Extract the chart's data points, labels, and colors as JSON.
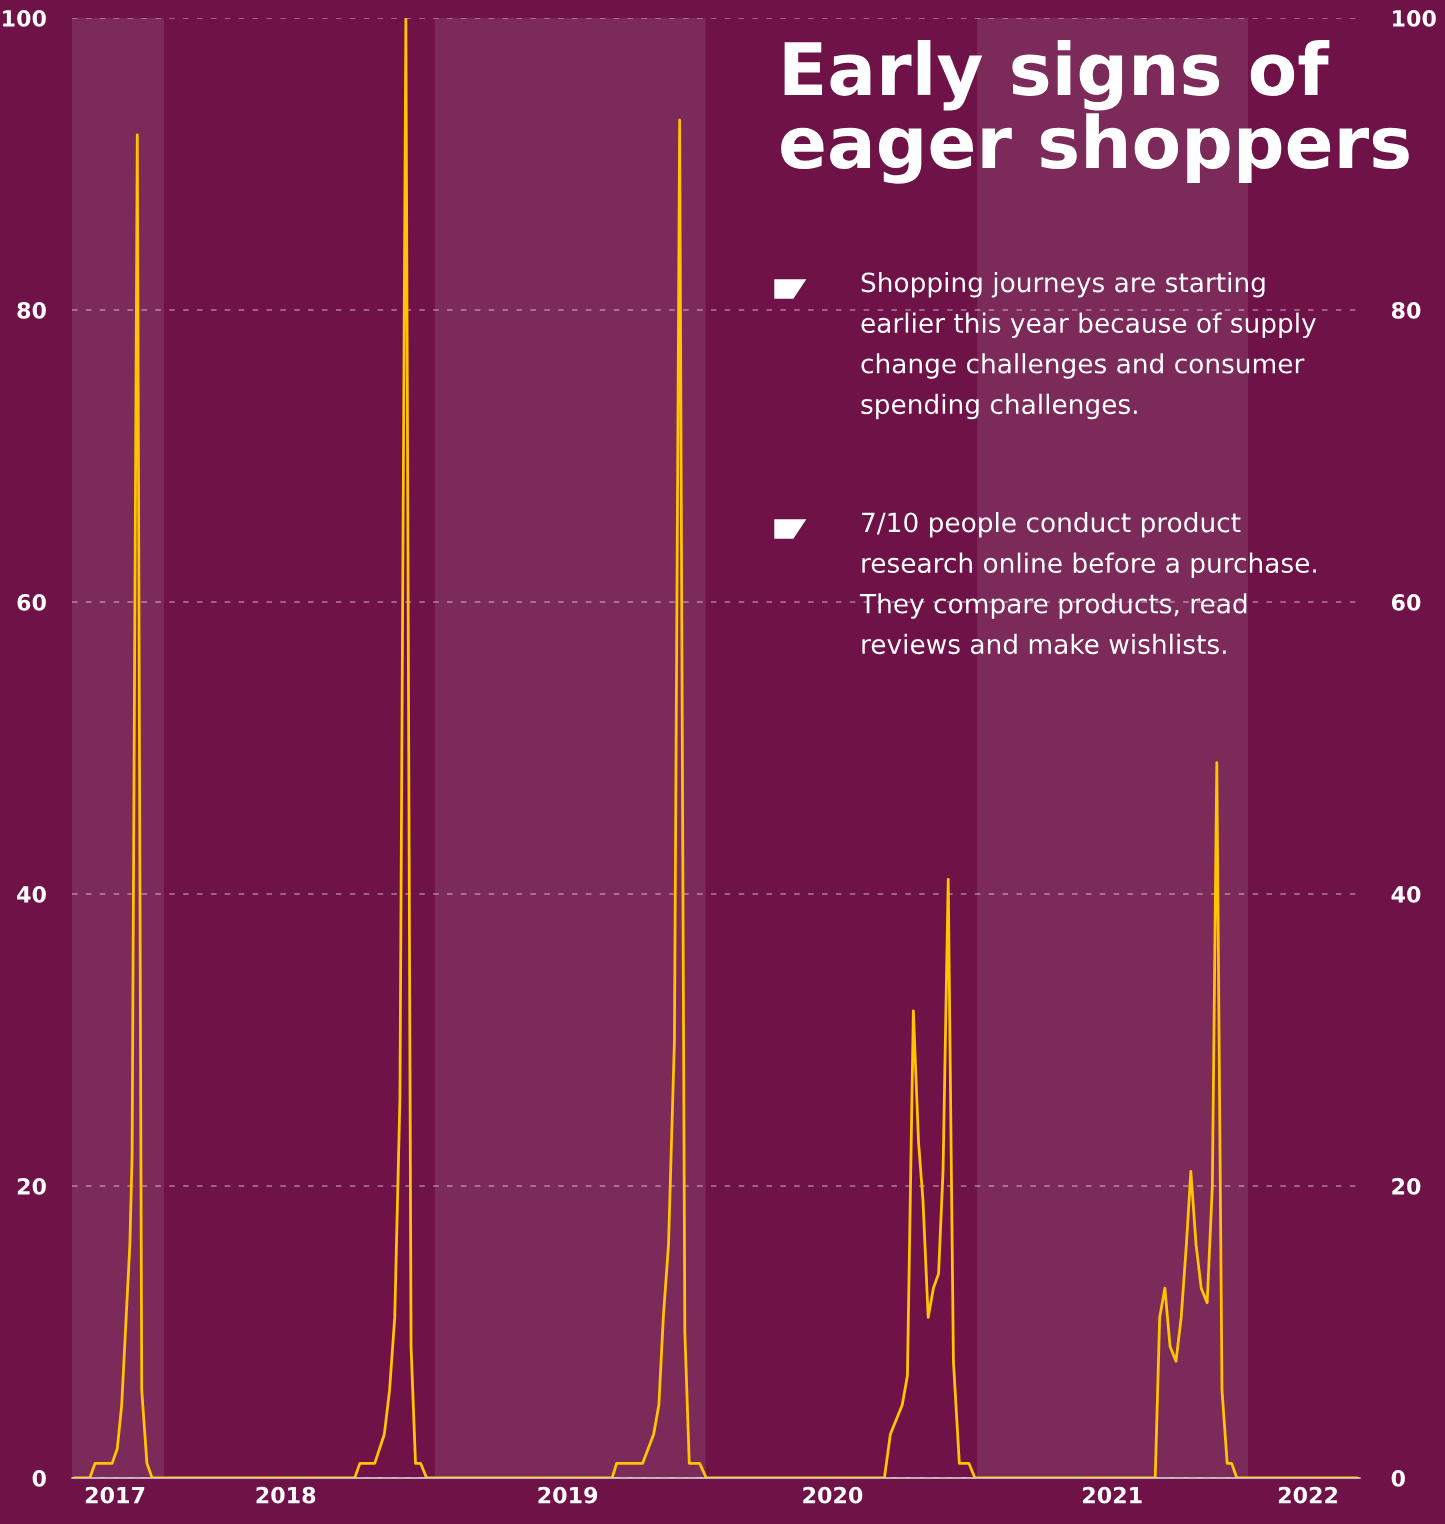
{
  "chart_data": {
    "type": "line",
    "annotations": [
      "Early signs of\neager shoppers",
      "Shopping journeys are starting\nearlier this year because of supply\nchange challenges and consumer\nspending challenges.",
      "7/10 people conduct product\nresearch online before a purchase.\nThey compare products, read\nreviews and make wishlists."
    ],
    "series": [
      {
        "color": "#ffc400",
        "x": [
          "2017-09-03",
          "2017-09-23",
          "2017-09-30",
          "2017-10-23",
          "2017-10-30",
          "2017-11-05",
          "2017-11-11",
          "2017-11-16",
          "2017-11-19",
          "2017-11-26",
          "2017-12-02",
          "2017-12-09",
          "2017-12-16",
          "2018-09-15",
          "2018-09-22",
          "2018-10-12",
          "2018-10-25",
          "2018-11-01",
          "2018-11-08",
          "2018-11-15",
          "2018-11-23",
          "2018-11-30",
          "2018-12-06",
          "2018-12-13",
          "2018-12-21",
          "2019-08-28",
          "2019-09-03",
          "2019-10-08",
          "2019-10-23",
          "2019-10-30",
          "2019-11-05",
          "2019-11-12",
          "2019-11-20",
          "2019-11-27",
          "2019-12-04",
          "2019-12-10",
          "2019-12-24",
          "2020-01-02",
          "2020-08-29",
          "2020-09-06",
          "2020-09-22",
          "2020-09-29",
          "2020-10-07",
          "2020-10-14",
          "2020-10-20",
          "2020-10-27",
          "2020-11-03",
          "2020-11-10",
          "2020-11-16",
          "2020-11-23",
          "2020-11-30",
          "2020-12-08",
          "2020-12-21",
          "2020-12-29",
          "2021-08-29",
          "2021-09-04",
          "2021-09-11",
          "2021-09-18",
          "2021-09-26",
          "2021-10-03",
          "2021-10-10",
          "2021-10-16",
          "2021-10-23",
          "2021-10-30",
          "2021-11-07",
          "2021-11-14",
          "2021-11-20",
          "2021-11-27",
          "2021-12-04",
          "2021-12-10",
          "2021-12-17",
          "2022-05-28"
        ],
        "values": [
          0,
          0,
          1,
          1,
          2,
          5,
          11,
          16,
          22,
          92,
          6,
          1,
          0,
          0,
          1,
          1,
          3,
          6,
          11,
          26,
          100,
          9,
          1,
          1,
          0,
          0,
          1,
          1,
          3,
          5,
          11,
          16,
          30,
          93,
          10,
          1,
          1,
          0,
          0,
          3,
          5,
          7,
          32,
          23,
          19,
          11,
          13,
          14,
          21,
          41,
          8,
          1,
          1,
          0,
          0,
          11,
          13,
          9,
          8,
          11,
          16,
          21,
          16,
          13,
          12,
          20,
          49,
          6,
          1,
          1,
          0,
          0
        ]
      }
    ],
    "xlim": [
      "2017-08-30",
      "2022-06-01"
    ],
    "xticks": [
      {
        "value": "2017-10-27",
        "label": "2017"
      },
      {
        "value": "2018-06-14",
        "label": "2018"
      },
      {
        "value": "2019-06-29",
        "label": "2019"
      },
      {
        "value": "2020-06-20",
        "label": "2020"
      },
      {
        "value": "2021-07-02",
        "label": "2021"
      },
      {
        "value": "2022-03-23",
        "label": "2022"
      }
    ],
    "ylim": [
      0,
      100
    ],
    "yticks": [
      0,
      20,
      40,
      60,
      80,
      100
    ],
    "y2lim": [
      0,
      100
    ],
    "y2ticks": [
      0,
      20,
      40,
      60,
      80,
      100
    ],
    "bands": [
      {
        "axis": "x",
        "from": "2017-08-30",
        "to": "2018-01-01",
        "color": "#ffffff"
      },
      {
        "axis": "x",
        "from": "2019-01-01",
        "to": "2020-01-01",
        "color": "#ffffff"
      },
      {
        "axis": "x",
        "from": "2021-01-01",
        "to": "2022-01-01",
        "color": "#ffffff"
      }
    ],
    "grid": "y"
  }
}
